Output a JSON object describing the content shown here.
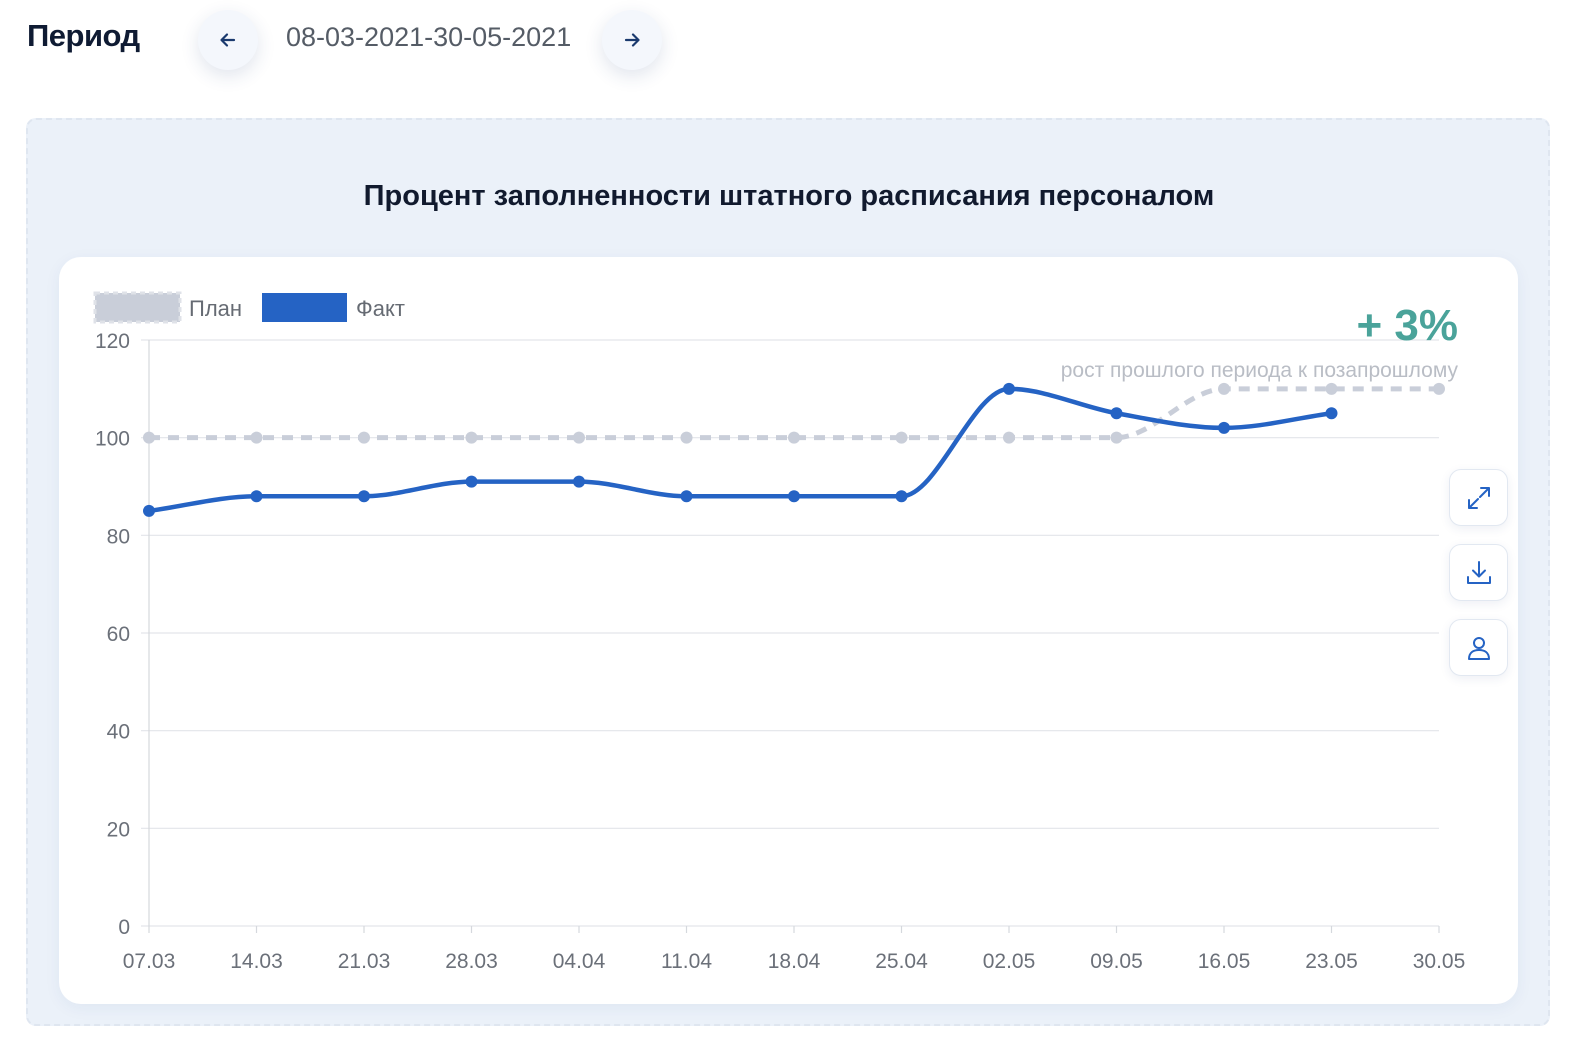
{
  "period": {
    "label": "Период",
    "range": "08-03-2021-30-05-2021"
  },
  "icons": {
    "prev": "arrow-left-icon",
    "next": "arrow-right-icon",
    "expand": "expand-icon",
    "download": "download-icon",
    "user": "user-icon"
  },
  "colors": {
    "plan": "#c9ced9",
    "fact": "#2563c4",
    "growth": "#4aa39a"
  },
  "growth": {
    "value": "+ 3%",
    "caption": "рост прошлого периода к позапрошлому"
  },
  "chart_data": {
    "type": "line",
    "title": "Процент заполненности штатного расписания персоналом",
    "categories": [
      "07.03",
      "14.03",
      "21.03",
      "28.03",
      "04.04",
      "11.04",
      "18.04",
      "25.04",
      "02.05",
      "09.05",
      "16.05",
      "23.05",
      "30.05"
    ],
    "series": [
      {
        "name": "План",
        "style": "dashed",
        "values": [
          100,
          100,
          100,
          100,
          100,
          100,
          100,
          100,
          100,
          100,
          110,
          110,
          110
        ]
      },
      {
        "name": "Факт",
        "style": "solid",
        "values": [
          85,
          88,
          88,
          91,
          91,
          88,
          88,
          88,
          110,
          105,
          102,
          105,
          null
        ]
      }
    ],
    "ylim": [
      0,
      120
    ],
    "yticks": [
      0,
      20,
      40,
      60,
      80,
      100,
      120
    ],
    "grid": true,
    "legend": "top-left",
    "smooth": true
  }
}
